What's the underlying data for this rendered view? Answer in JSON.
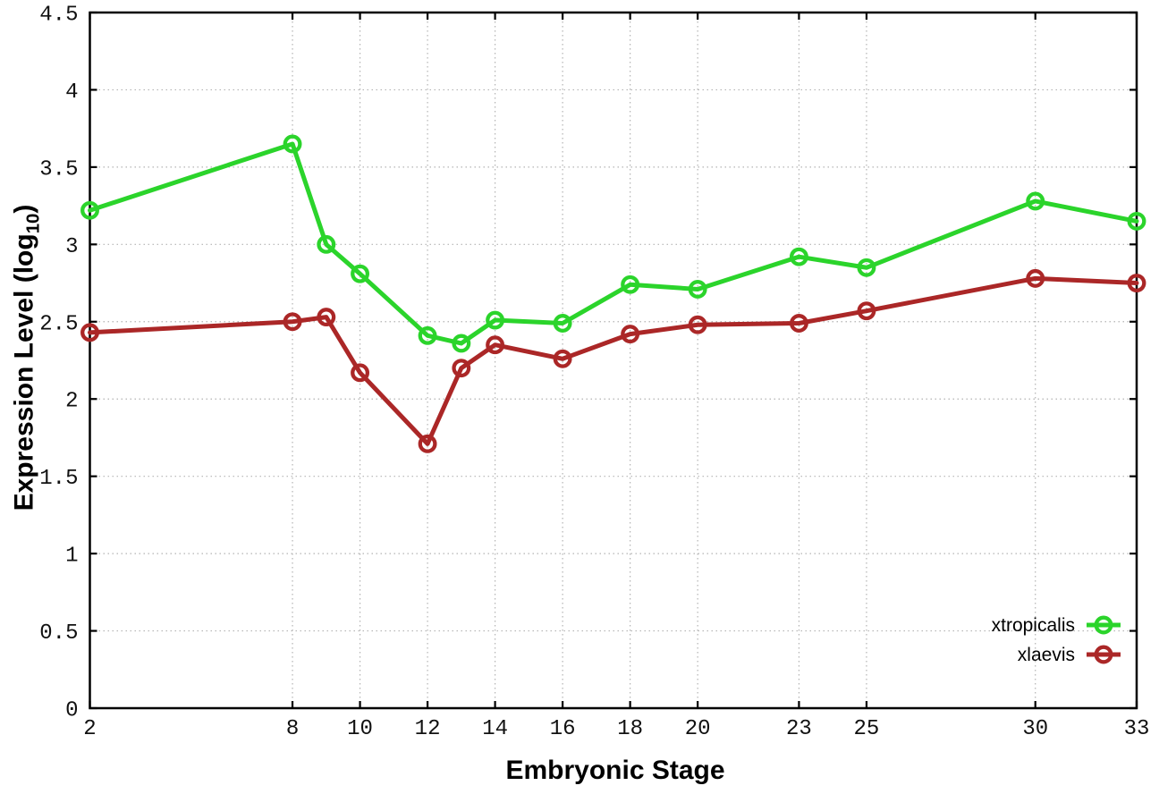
{
  "chart_data": {
    "type": "line",
    "title": "",
    "xlabel": "Embryonic Stage",
    "ylabel": "Expression Level (log10)",
    "ylabel_parts": {
      "prefix": "Expression Level (log",
      "subscript": "10",
      "suffix": ")"
    },
    "xlim": [
      2,
      33
    ],
    "ylim": [
      0,
      4.5
    ],
    "grid": true,
    "legend_position": "inside-bottom-right",
    "x": [
      2,
      8,
      9,
      10,
      12,
      13,
      14,
      16,
      18,
      20,
      23,
      25,
      30,
      33
    ],
    "xtick_values": [
      2,
      8,
      10,
      12,
      14,
      16,
      18,
      20,
      23,
      25,
      30,
      33
    ],
    "xtick_labels": [
      "2",
      "8",
      "10",
      "12",
      "14",
      "16",
      "18",
      "20",
      "23",
      "25",
      "30",
      "33"
    ],
    "ytick_values": [
      0,
      0.5,
      1,
      1.5,
      2,
      2.5,
      3,
      3.5,
      4,
      4.5
    ],
    "ytick_labels": [
      "0",
      "0.5",
      "1",
      "1.5",
      "2",
      "2.5",
      "3",
      "3.5",
      "4",
      "4.5"
    ],
    "series": [
      {
        "name": "xtropicalis",
        "color": "#2bd42b",
        "values": [
          3.22,
          3.65,
          3.0,
          2.81,
          2.41,
          2.36,
          2.51,
          2.49,
          2.74,
          2.71,
          2.92,
          2.85,
          3.28,
          3.15
        ]
      },
      {
        "name": "xlaevis",
        "color": "#ab2727",
        "values": [
          2.43,
          2.5,
          2.53,
          2.17,
          1.71,
          2.2,
          2.35,
          2.26,
          2.42,
          2.48,
          2.49,
          2.57,
          2.78,
          2.75
        ]
      }
    ],
    "colors": {
      "grid": "#b3b3b3",
      "axis": "#000000",
      "tick_label": "#111111",
      "background": "#ffffff"
    }
  }
}
